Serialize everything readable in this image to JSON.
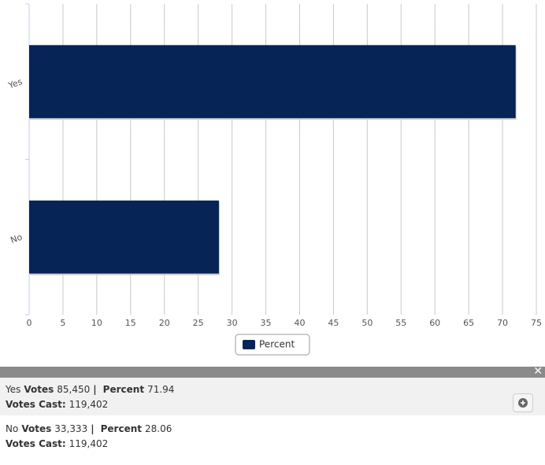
{
  "chart_data": {
    "type": "bar",
    "orientation": "horizontal",
    "categories": [
      "Yes",
      "No"
    ],
    "series": [
      {
        "name": "Percent",
        "color": "#062456",
        "values": [
          71.94,
          28.06
        ]
      }
    ],
    "xlim": [
      0,
      75
    ],
    "xticks": [
      0,
      5,
      10,
      15,
      20,
      25,
      30,
      35,
      40,
      45,
      50,
      55,
      60,
      65,
      70,
      75
    ],
    "grid": true,
    "legend": "bottom"
  },
  "results": {
    "labels": {
      "votes": "Votes",
      "votes_cast": "Votes Cast:"
    },
    "separator": "|",
    "rows": [
      {
        "votes": "85,450",
        "votes_cast": "119,402"
      },
      {
        "votes": "33,333",
        "votes_cast": "119,402"
      }
    ]
  }
}
